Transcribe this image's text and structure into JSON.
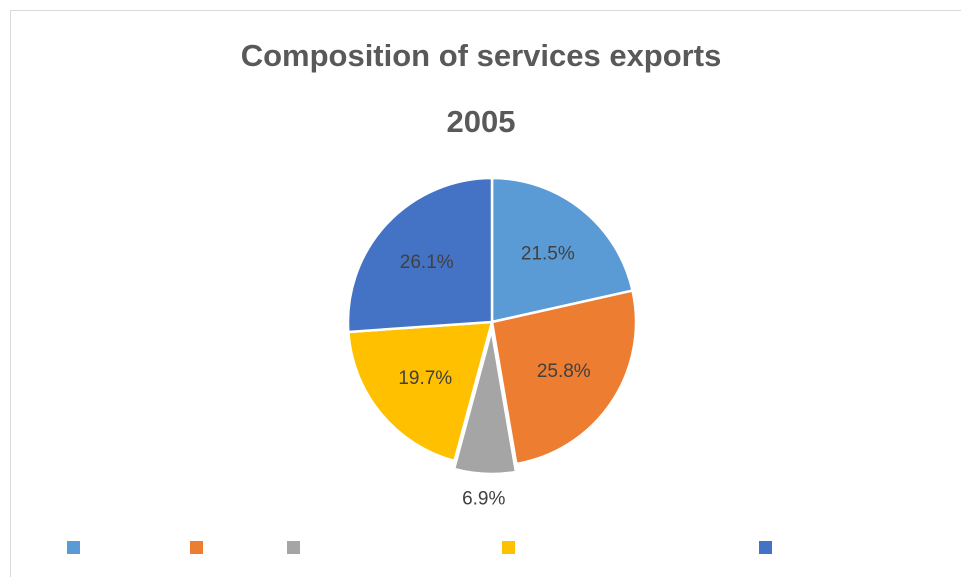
{
  "chart_data": {
    "type": "pie",
    "title": "Composition of services exports",
    "subtitle": "2005",
    "slices": [
      {
        "value": 21.5,
        "label": "21.5%",
        "color": "#5B9BD5"
      },
      {
        "value": 25.8,
        "label": "25.8%",
        "color": "#ED7D31"
      },
      {
        "value": 6.9,
        "label": "6.9%",
        "color": "#A5A5A5"
      },
      {
        "value": 19.7,
        "label": "19.7%",
        "color": "#FFC000"
      },
      {
        "value": 26.1,
        "label": "26.1%",
        "color": "#4472C4"
      }
    ],
    "legend_position": "bottom"
  }
}
